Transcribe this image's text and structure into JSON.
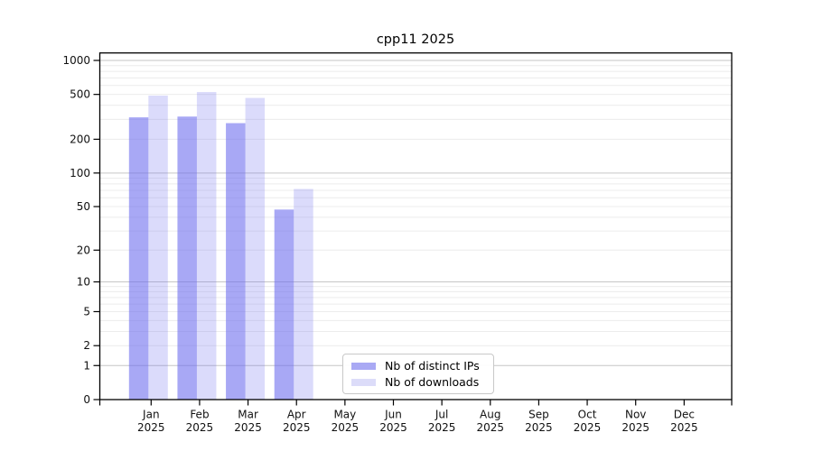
{
  "chart_data": {
    "type": "bar",
    "title": "cpp11 2025",
    "x_categories": [
      "Jan 2025",
      "Feb 2025",
      "Mar 2025",
      "Apr 2025",
      "May 2025",
      "Jun 2025",
      "Jul 2025",
      "Aug 2025",
      "Sep 2025",
      "Oct 2025",
      "Nov 2025",
      "Dec 2025"
    ],
    "months": [
      {
        "m": "Jan",
        "y": "2025"
      },
      {
        "m": "Feb",
        "y": "2025"
      },
      {
        "m": "Mar",
        "y": "2025"
      },
      {
        "m": "Apr",
        "y": "2025"
      },
      {
        "m": "May",
        "y": "2025"
      },
      {
        "m": "Jun",
        "y": "2025"
      },
      {
        "m": "Jul",
        "y": "2025"
      },
      {
        "m": "Aug",
        "y": "2025"
      },
      {
        "m": "Sep",
        "y": "2025"
      },
      {
        "m": "Oct",
        "y": "2025"
      },
      {
        "m": "Nov",
        "y": "2025"
      },
      {
        "m": "Dec",
        "y": "2025"
      }
    ],
    "series": [
      {
        "name": "Nb of distinct IPs",
        "swatch_color": "#a9a9f4",
        "fill_rgba": "rgba(110,110,238,0.60)",
        "values": [
          313,
          318,
          278,
          47,
          null,
          null,
          null,
          null,
          null,
          null,
          null,
          null
        ]
      },
      {
        "name": "Nb of downloads",
        "swatch_color": "#dcdcf9",
        "fill_rgba": "rgba(110,110,238,0.25)",
        "values": [
          488,
          525,
          465,
          72,
          null,
          null,
          null,
          null,
          null,
          null,
          null,
          null
        ]
      }
    ],
    "y_axis": {
      "scale": "symlog-log1p",
      "ticks": [
        0,
        1,
        2,
        5,
        10,
        20,
        50,
        100,
        200,
        500,
        1000
      ],
      "tick_labels": [
        "0",
        "1",
        "2",
        "5",
        "10",
        "20",
        "50",
        "100",
        "200",
        "500",
        "1000"
      ],
      "top_value_visible": 1160
    },
    "grid": {
      "major_gridline_color": "#c6c6c6",
      "minor_gridline_color": "#ececec",
      "minor_multiples": [
        2,
        3,
        4,
        5,
        6,
        7,
        8,
        9
      ],
      "minor_decades": [
        1,
        10,
        100
      ]
    },
    "legend_position": "bottom-center-inside",
    "frame_color": "#000000",
    "bars_per_month": 2
  }
}
